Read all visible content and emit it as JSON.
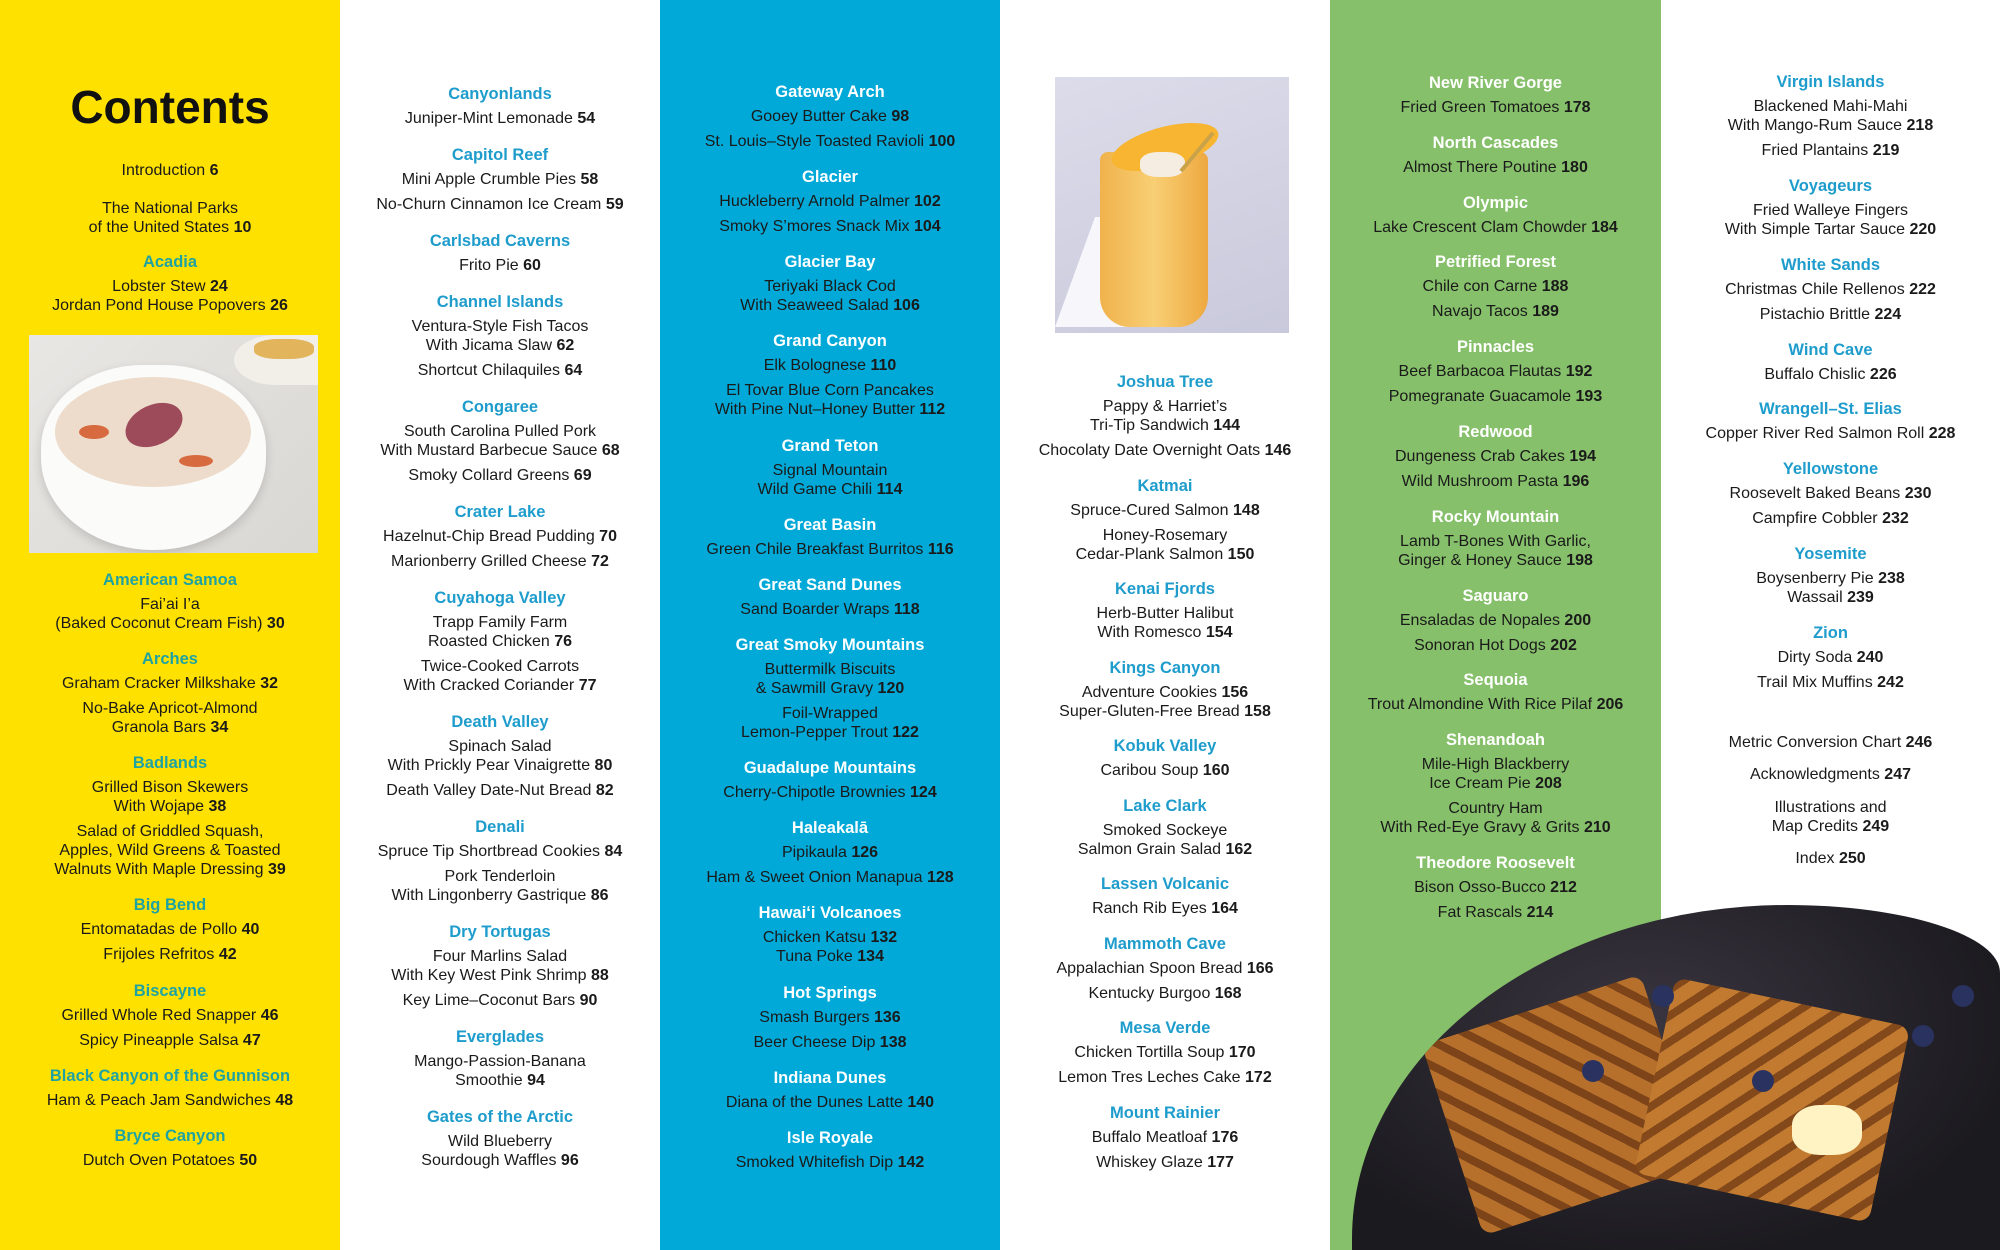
{
  "page_title": "Contents",
  "colors": {
    "yellow": "#ffe100",
    "blue": "#00a9d8",
    "green": "#86c06a",
    "heading_on_yellow": "#1fa3a2",
    "heading_on_white": "#1e9ccc",
    "heading_on_color": "#ffffff"
  },
  "images": {
    "col1": "lobster-stew-photo",
    "col4": "mango-smoothie-photo",
    "col6": "blueberry-waffles-photo"
  },
  "columns": [
    {
      "id": "c1a",
      "sections": [
        {
          "heading": "",
          "entries": [
            {
              "title": "Introduction",
              "page": "6"
            }
          ]
        },
        {
          "heading": "",
          "entries": [
            {
              "title": "The National Parks\nof the United States",
              "page": "10"
            }
          ]
        },
        {
          "heading": "Acadia",
          "entries": [
            {
              "title": "Lobster Stew",
              "page": "24"
            },
            {
              "title": "Jordan Pond House Popovers",
              "page": "26",
              "tight": true
            }
          ]
        }
      ]
    },
    {
      "id": "c1b",
      "sections": [
        {
          "heading": "American Samoa",
          "entries": [
            {
              "title": "Fai’ai I’a\n(Baked Coconut Cream Fish)",
              "page": "30"
            }
          ]
        },
        {
          "heading": "Arches",
          "entries": [
            {
              "title": "Graham Cracker Milkshake",
              "page": "32"
            },
            {
              "title": "No-Bake Apricot-Almond\nGranola Bars",
              "page": "34"
            }
          ]
        },
        {
          "heading": "Badlands",
          "entries": [
            {
              "title": "Grilled Bison Skewers\nWith Wojape",
              "page": "38"
            },
            {
              "title": "Salad of Griddled Squash,\nApples, Wild Greens & Toasted\nWalnuts With Maple Dressing",
              "page": "39"
            }
          ]
        },
        {
          "heading": "Big Bend",
          "entries": [
            {
              "title": "Entomatadas de Pollo",
              "page": "40"
            },
            {
              "title": "Frijoles Refritos",
              "page": "42"
            }
          ]
        },
        {
          "heading": "Biscayne",
          "entries": [
            {
              "title": "Grilled Whole Red Snapper",
              "page": "46"
            },
            {
              "title": "Spicy Pineapple Salsa",
              "page": "47"
            }
          ]
        },
        {
          "heading": "Black Canyon of the Gunnison",
          "entries": [
            {
              "title": "Ham & Peach Jam Sandwiches",
              "page": "48"
            }
          ]
        },
        {
          "heading": "Bryce Canyon",
          "entries": [
            {
              "title": "Dutch Oven Potatoes",
              "page": "50"
            }
          ]
        }
      ]
    },
    {
      "id": "c2",
      "sections": [
        {
          "heading": "Canyonlands",
          "entries": [
            {
              "title": "Juniper-Mint Lemonade",
              "page": "54"
            }
          ]
        },
        {
          "heading": "Capitol Reef",
          "entries": [
            {
              "title": "Mini Apple Crumble Pies",
              "page": "58"
            },
            {
              "title": "No-Churn Cinnamon Ice Cream",
              "page": "59"
            }
          ]
        },
        {
          "heading": "Carlsbad Caverns",
          "entries": [
            {
              "title": "Frito Pie",
              "page": "60"
            }
          ]
        },
        {
          "heading": "Channel Islands",
          "entries": [
            {
              "title": "Ventura-Style Fish Tacos\nWith Jicama Slaw",
              "page": "62"
            },
            {
              "title": "Shortcut Chilaquiles",
              "page": "64"
            }
          ]
        },
        {
          "heading": "Congaree",
          "entries": [
            {
              "title": "South Carolina Pulled Pork\nWith Mustard Barbecue Sauce",
              "page": "68"
            },
            {
              "title": "Smoky Collard Greens",
              "page": "69"
            }
          ]
        },
        {
          "heading": "Crater Lake",
          "entries": [
            {
              "title": "Hazelnut-Chip Bread Pudding",
              "page": "70"
            },
            {
              "title": "Marionberry Grilled Cheese",
              "page": "72"
            }
          ]
        },
        {
          "heading": "Cuyahoga Valley",
          "entries": [
            {
              "title": "Trapp Family Farm\nRoasted Chicken",
              "page": "76"
            },
            {
              "title": "Twice-Cooked Carrots\nWith Cracked Coriander",
              "page": "77"
            }
          ]
        },
        {
          "heading": "Death Valley",
          "entries": [
            {
              "title": "Spinach Salad\nWith Prickly Pear Vinaigrette",
              "page": "80"
            },
            {
              "title": "Death Valley Date-Nut Bread",
              "page": "82"
            }
          ]
        },
        {
          "heading": "Denali",
          "entries": [
            {
              "title": "Spruce Tip Shortbread Cookies",
              "page": "84"
            },
            {
              "title": "Pork Tenderloin\nWith Lingonberry Gastrique",
              "page": "86"
            }
          ]
        },
        {
          "heading": "Dry Tortugas",
          "entries": [
            {
              "title": "Four Marlins Salad\nWith Key West Pink Shrimp",
              "page": "88"
            },
            {
              "title": "Key Lime–Coconut Bars",
              "page": "90"
            }
          ]
        },
        {
          "heading": "Everglades",
          "entries": [
            {
              "title": "Mango-Passion-Banana\nSmoothie",
              "page": "94"
            }
          ]
        },
        {
          "heading": "Gates of the Arctic",
          "entries": [
            {
              "title": "Wild Blueberry\nSourdough Waffles",
              "page": "96"
            }
          ]
        }
      ]
    },
    {
      "id": "c3",
      "sections": [
        {
          "heading": "Gateway Arch",
          "entries": [
            {
              "title": "Gooey Butter Cake",
              "page": "98"
            },
            {
              "title": "St. Louis–Style Toasted Ravioli",
              "page": "100"
            }
          ]
        },
        {
          "heading": "Glacier",
          "entries": [
            {
              "title": "Huckleberry Arnold Palmer",
              "page": "102"
            },
            {
              "title": "Smoky S’mores Snack Mix",
              "page": "104"
            }
          ]
        },
        {
          "heading": "Glacier Bay",
          "entries": [
            {
              "title": "Teriyaki Black Cod\nWith Seaweed Salad",
              "page": "106"
            }
          ]
        },
        {
          "heading": "Grand Canyon",
          "entries": [
            {
              "title": "Elk Bolognese",
              "page": "110"
            },
            {
              "title": "El Tovar Blue Corn Pancakes\nWith Pine Nut–Honey Butter",
              "page": "112"
            }
          ]
        },
        {
          "heading": "Grand Teton",
          "entries": [
            {
              "title": "Signal Mountain\nWild Game Chili",
              "page": "114"
            }
          ]
        },
        {
          "heading": "Great Basin",
          "entries": [
            {
              "title": "Green Chile Breakfast Burritos",
              "page": "116"
            }
          ]
        },
        {
          "heading": "Great Sand Dunes",
          "entries": [
            {
              "title": "Sand Boarder Wraps",
              "page": "118"
            }
          ]
        },
        {
          "heading": "Great Smoky Mountains",
          "entries": [
            {
              "title": "Buttermilk Biscuits\n& Sawmill Gravy",
              "page": "120"
            },
            {
              "title": "Foil-Wrapped\nLemon-Pepper Trout",
              "page": "122"
            }
          ]
        },
        {
          "heading": "Guadalupe Mountains",
          "entries": [
            {
              "title": "Cherry-Chipotle Brownies",
              "page": "124"
            }
          ]
        },
        {
          "heading": "Haleakalā",
          "entries": [
            {
              "title": "Pipikaula",
              "page": "126"
            },
            {
              "title": "Ham & Sweet Onion Manapua",
              "page": "128"
            }
          ]
        },
        {
          "heading": "Hawaiʻi Volcanoes",
          "entries": [
            {
              "title": "Chicken Katsu",
              "page": "132"
            },
            {
              "title": "Tuna Poke",
              "page": "134",
              "tight": true
            }
          ]
        },
        {
          "heading": "Hot Springs",
          "entries": [
            {
              "title": "Smash Burgers",
              "page": "136"
            },
            {
              "title": "Beer Cheese Dip",
              "page": "138"
            }
          ]
        },
        {
          "heading": "Indiana Dunes",
          "entries": [
            {
              "title": "Diana of the Dunes Latte",
              "page": "140"
            }
          ]
        },
        {
          "heading": "Isle Royale",
          "entries": [
            {
              "title": "Smoked Whitefish Dip",
              "page": "142"
            }
          ]
        }
      ]
    },
    {
      "id": "c4",
      "sections": [
        {
          "heading": "Joshua Tree",
          "entries": [
            {
              "title": "Pappy & Harriet’s\nTri-Tip Sandwich",
              "page": "144"
            },
            {
              "title": "Chocolaty Date Overnight Oats",
              "page": "146"
            }
          ]
        },
        {
          "heading": "Katmai",
          "entries": [
            {
              "title": "Spruce-Cured Salmon",
              "page": "148"
            },
            {
              "title": "Honey-Rosemary\nCedar-Plank Salmon",
              "page": "150"
            }
          ]
        },
        {
          "heading": "Kenai Fjords",
          "entries": [
            {
              "title": "Herb-Butter Halibut\nWith Romesco",
              "page": "154"
            }
          ]
        },
        {
          "heading": "Kings Canyon",
          "entries": [
            {
              "title": "Adventure Cookies",
              "page": "156"
            },
            {
              "title": "Super-Gluten-Free Bread",
              "page": "158",
              "tight": true
            }
          ]
        },
        {
          "heading": "Kobuk Valley",
          "entries": [
            {
              "title": "Caribou Soup",
              "page": "160"
            }
          ]
        },
        {
          "heading": "Lake Clark",
          "entries": [
            {
              "title": "Smoked Sockeye\nSalmon Grain Salad",
              "page": "162"
            }
          ]
        },
        {
          "heading": "Lassen Volcanic",
          "entries": [
            {
              "title": "Ranch Rib Eyes",
              "page": "164"
            }
          ]
        },
        {
          "heading": "Mammoth Cave",
          "entries": [
            {
              "title": "Appalachian Spoon Bread",
              "page": "166"
            },
            {
              "title": "Kentucky Burgoo",
              "page": "168"
            }
          ]
        },
        {
          "heading": "Mesa Verde",
          "entries": [
            {
              "title": "Chicken Tortilla Soup",
              "page": "170"
            },
            {
              "title": "Lemon Tres Leches Cake",
              "page": "172"
            }
          ]
        },
        {
          "heading": "Mount Rainier",
          "entries": [
            {
              "title": "Buffalo Meatloaf",
              "page": "176"
            },
            {
              "title": "Whiskey Glaze",
              "page": "177"
            }
          ]
        }
      ]
    },
    {
      "id": "c5",
      "sections": [
        {
          "heading": "New River Gorge",
          "entries": [
            {
              "title": "Fried Green Tomatoes",
              "page": "178"
            }
          ]
        },
        {
          "heading": "North Cascades",
          "entries": [
            {
              "title": "Almost There Poutine",
              "page": "180"
            }
          ]
        },
        {
          "heading": "Olympic",
          "entries": [
            {
              "title": "Lake Crescent Clam Chowder",
              "page": "184"
            }
          ]
        },
        {
          "heading": "Petrified Forest",
          "entries": [
            {
              "title": "Chile con Carne",
              "page": "188"
            },
            {
              "title": "Navajo Tacos",
              "page": "189"
            }
          ]
        },
        {
          "heading": "Pinnacles",
          "entries": [
            {
              "title": "Beef Barbacoa Flautas",
              "page": "192"
            },
            {
              "title": "Pomegranate Guacamole",
              "page": "193"
            }
          ]
        },
        {
          "heading": "Redwood",
          "entries": [
            {
              "title": "Dungeness Crab Cakes",
              "page": "194"
            },
            {
              "title": "Wild Mushroom Pasta",
              "page": "196"
            }
          ]
        },
        {
          "heading": "Rocky Mountain",
          "entries": [
            {
              "title": "Lamb T-Bones With Garlic,\nGinger & Honey Sauce",
              "page": "198"
            }
          ]
        },
        {
          "heading": "Saguaro",
          "entries": [
            {
              "title": "Ensaladas de Nopales",
              "page": "200"
            },
            {
              "title": "Sonoran Hot Dogs",
              "page": "202"
            }
          ]
        },
        {
          "heading": "Sequoia",
          "entries": [
            {
              "title": "Trout Almondine With Rice Pilaf",
              "page": "206"
            }
          ]
        },
        {
          "heading": "Shenandoah",
          "entries": [
            {
              "title": "Mile-High Blackberry\nIce Cream Pie",
              "page": "208"
            },
            {
              "title": "Country Ham\nWith Red-Eye Gravy & Grits",
              "page": "210"
            }
          ]
        },
        {
          "heading": "Theodore Roosevelt",
          "entries": [
            {
              "title": "Bison Osso-Bucco",
              "page": "212"
            },
            {
              "title": "Fat Rascals",
              "page": "214"
            }
          ]
        }
      ]
    },
    {
      "id": "c6",
      "sections": [
        {
          "heading": "Virgin Islands",
          "entries": [
            {
              "title": "Blackened Mahi-Mahi\nWith Mango-Rum Sauce",
              "page": "218"
            },
            {
              "title": "Fried Plantains",
              "page": "219"
            }
          ]
        },
        {
          "heading": "Voyageurs",
          "entries": [
            {
              "title": "Fried Walleye Fingers\nWith Simple Tartar Sauce",
              "page": "220"
            }
          ]
        },
        {
          "heading": "White Sands",
          "entries": [
            {
              "title": "Christmas Chile Rellenos",
              "page": "222"
            },
            {
              "title": "Pistachio Brittle",
              "page": "224"
            }
          ]
        },
        {
          "heading": "Wind Cave",
          "entries": [
            {
              "title": "Buffalo Chislic",
              "page": "226"
            }
          ]
        },
        {
          "heading": "Wrangell–St. Elias",
          "entries": [
            {
              "title": "Copper River Red Salmon Roll",
              "page": "228"
            }
          ]
        },
        {
          "heading": "Yellowstone",
          "entries": [
            {
              "title": "Roosevelt Baked Beans",
              "page": "230"
            },
            {
              "title": "Campfire Cobbler",
              "page": "232"
            }
          ]
        },
        {
          "heading": "Yosemite",
          "entries": [
            {
              "title": "Boysenberry Pie",
              "page": "238"
            },
            {
              "title": "Wassail",
              "page": "239",
              "tight": true
            }
          ]
        },
        {
          "heading": "Zion",
          "entries": [
            {
              "title": "Dirty Soda",
              "page": "240"
            },
            {
              "title": "Trail Mix Muffins",
              "page": "242"
            }
          ]
        }
      ]
    },
    {
      "id": "c6b",
      "sections": [
        {
          "heading": "",
          "entries": [
            {
              "title": "Metric Conversion Chart",
              "page": "246"
            }
          ]
        },
        {
          "heading": "",
          "entries": [
            {
              "title": "Acknowledgments",
              "page": "247"
            }
          ]
        },
        {
          "heading": "",
          "entries": [
            {
              "title": "Illustrations and\nMap Credits",
              "page": "249"
            }
          ]
        },
        {
          "heading": "",
          "entries": [
            {
              "title": "Index",
              "page": "250"
            }
          ]
        }
      ]
    }
  ]
}
